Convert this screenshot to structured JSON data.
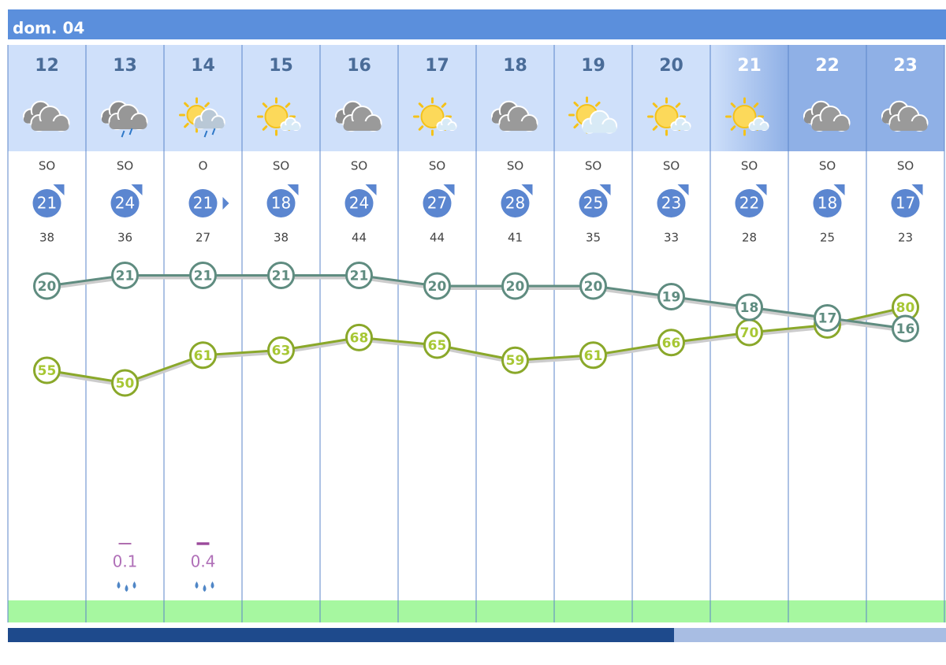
{
  "header": {
    "title": "dom. 04"
  },
  "hours": [
    {
      "hour": "12",
      "wind_direction": "SO",
      "wind_speed": 21,
      "gust": 38,
      "temperature": 20,
      "humidity": 55,
      "precipitation": null
    },
    {
      "hour": "13",
      "wind_direction": "SO",
      "wind_speed": 24,
      "gust": 36,
      "temperature": 21,
      "humidity": 50,
      "precipitation": 0.1
    },
    {
      "hour": "14",
      "wind_direction": "O",
      "wind_speed": 21,
      "gust": 27,
      "temperature": 21,
      "humidity": 61,
      "precipitation": 0.4
    },
    {
      "hour": "15",
      "wind_direction": "SO",
      "wind_speed": 18,
      "gust": 38,
      "temperature": 21,
      "humidity": 63,
      "precipitation": null
    },
    {
      "hour": "16",
      "wind_direction": "SO",
      "wind_speed": 24,
      "gust": 44,
      "temperature": 21,
      "humidity": 68,
      "precipitation": null
    },
    {
      "hour": "17",
      "wind_direction": "SO",
      "wind_speed": 27,
      "gust": 44,
      "temperature": 20,
      "humidity": 65,
      "precipitation": null
    },
    {
      "hour": "18",
      "wind_direction": "SO",
      "wind_speed": 28,
      "gust": 41,
      "temperature": 20,
      "humidity": 59,
      "precipitation": null
    },
    {
      "hour": "19",
      "wind_direction": "SO",
      "wind_speed": 25,
      "gust": 35,
      "temperature": 20,
      "humidity": 61,
      "precipitation": null
    },
    {
      "hour": "20",
      "wind_direction": "SO",
      "wind_speed": 23,
      "gust": 33,
      "temperature": 19,
      "humidity": 66,
      "precipitation": null
    },
    {
      "hour": "21",
      "wind_direction": "SO",
      "wind_speed": 22,
      "gust": 28,
      "temperature": 18,
      "humidity": 70,
      "precipitation": null
    },
    {
      "hour": "22",
      "wind_direction": "SO",
      "wind_speed": 18,
      "gust": 25,
      "temperature": 17,
      "humidity": 73,
      "precipitation": null
    },
    {
      "hour": "23",
      "wind_direction": "SO",
      "wind_speed": 17,
      "gust": 23,
      "temperature": 16,
      "humidity": 80,
      "precipitation": null
    }
  ]
}
